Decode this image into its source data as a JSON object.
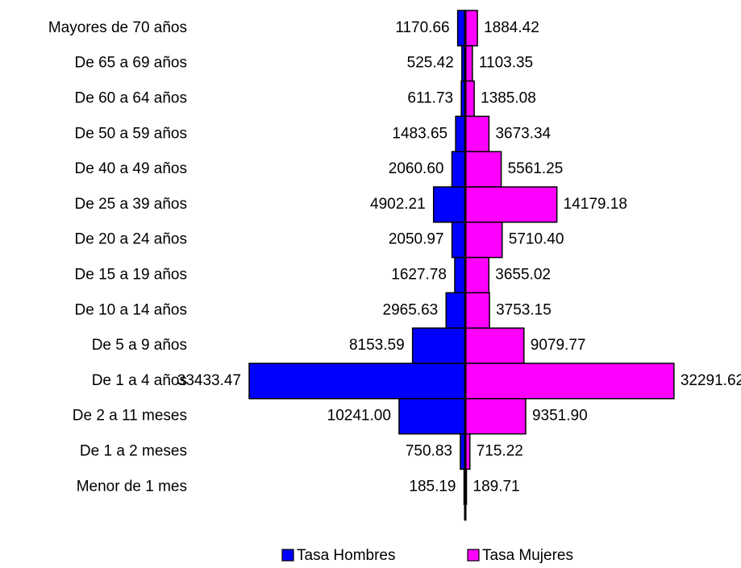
{
  "chart_data": {
    "type": "pyramid",
    "categories": [
      "Mayores de 70 años",
      "De 65 a 69 años",
      "De 60 a 64 años",
      "De 50 a 59 años",
      "De 40 a 49 años",
      "De 25 a 39 años",
      "De 20 a 24 años",
      "De 15 a 19 años",
      "De 10 a 14 años",
      "De 5 a 9 años",
      "De 1 a 4 años",
      "De 2 a 11 meses",
      "De 1 a 2 meses",
      "Menor de 1 mes"
    ],
    "series": [
      {
        "name": "Tasa Hombres",
        "color": "#0000ff",
        "side": "left",
        "values": [
          1170.66,
          525.42,
          611.73,
          1483.65,
          2060.6,
          4902.21,
          2050.97,
          1627.78,
          2965.63,
          8153.59,
          33433.47,
          10241,
          750.83,
          185.19
        ],
        "value_labels": [
          "1170.66",
          "525.42",
          "611.73",
          "1483.65",
          "2060.60",
          "4902.21",
          "2050.97",
          "1627.78",
          "2965.63",
          "8153.59",
          "33433.47",
          "10241.00",
          "750.83",
          "185.19"
        ]
      },
      {
        "name": "Tasa Mujeres",
        "color": "#ff00ff",
        "side": "right",
        "values": [
          1884.42,
          1103.35,
          1385.08,
          3673.34,
          5561.25,
          14179.18,
          5710.4,
          3655.02,
          3753.15,
          9079.77,
          32291.62,
          9351.9,
          715.22,
          189.71
        ],
        "value_labels": [
          "1884.42",
          "1103.35",
          "1385.08",
          "3673.34",
          "5561.25",
          "14179.18",
          "5710.40",
          "3655.02",
          "3753.15",
          "9079.77",
          "32291.62",
          "9351.90",
          "715.22",
          "189.71"
        ]
      }
    ]
  }
}
